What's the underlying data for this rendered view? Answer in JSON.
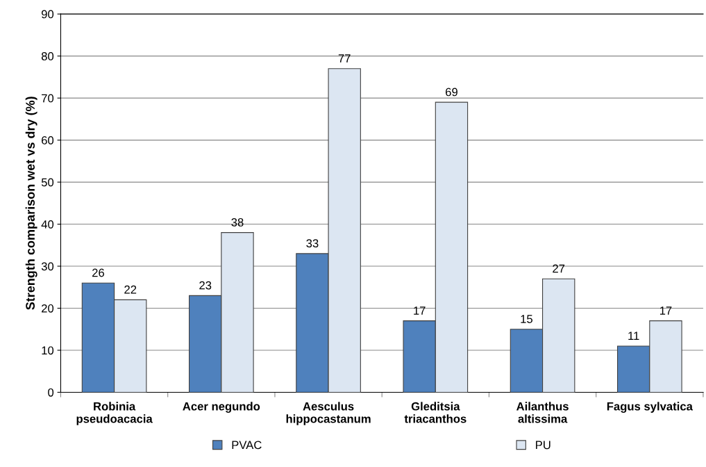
{
  "chart_data": {
    "type": "bar",
    "ylabel": "Strength comparison wet vs dry (%)",
    "categories": [
      "Robinia\npseudoacacia",
      "Acer negundo",
      "Aesculus\nhippocastanum",
      "Gleditsia\ntriacanthos",
      "Ailanthus\naltissima",
      "Fagus sylvatica"
    ],
    "series": [
      {
        "name": "PVAC",
        "color": "#4f81bd",
        "values": [
          26,
          23,
          33,
          17,
          15,
          11
        ]
      },
      {
        "name": "PU",
        "color": "#dce6f2",
        "values": [
          22,
          38,
          77,
          69,
          27,
          17
        ]
      }
    ],
    "ylim": [
      0,
      90
    ],
    "yticks": [
      0,
      10,
      20,
      30,
      40,
      50,
      60,
      70,
      80,
      90
    ],
    "grid": "y",
    "legend": "bottom",
    "data_labels": true
  }
}
